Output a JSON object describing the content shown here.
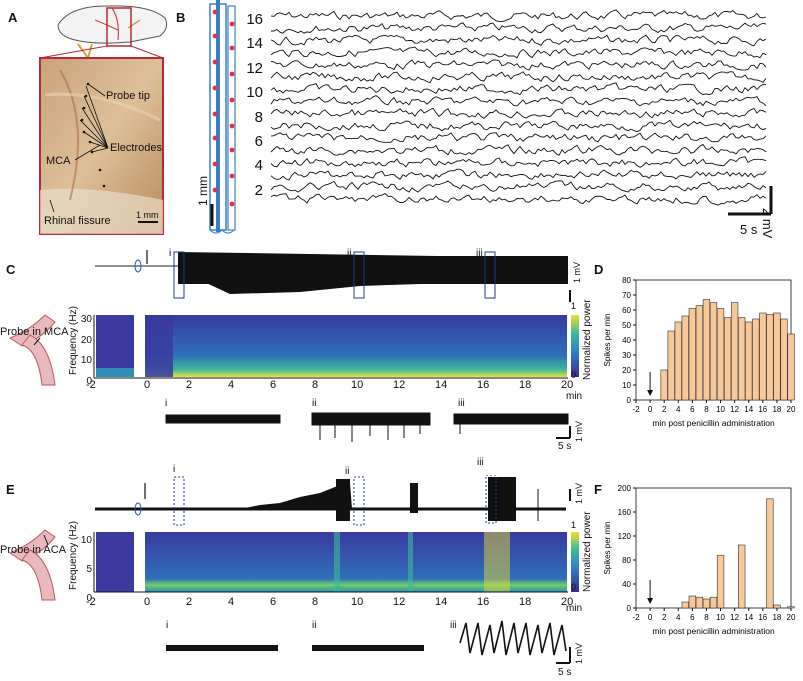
{
  "panels": {
    "A": "A",
    "B": "B",
    "C": "C",
    "D": "D",
    "E": "E",
    "F": "F"
  },
  "panelA": {
    "labels": [
      "Probe tip",
      "Electrodes",
      "MCA",
      "Rhinal fissure"
    ],
    "scalebar": "1 mm"
  },
  "panelB": {
    "channel_labels": [
      "16",
      "14",
      "12",
      "10",
      "8",
      "6",
      "4",
      "2"
    ],
    "scale_v": "2 mV",
    "scale_t": "5 s",
    "probe_scale": "1 mm"
  },
  "panelC": {
    "probe_label": "Probe in MCA",
    "ylabel": "Frequency (Hz)",
    "yticks": [
      "30",
      "20",
      "10",
      "0"
    ],
    "xticks": [
      "-2",
      "0",
      "2",
      "4",
      "6",
      "8",
      "10",
      "12",
      "14",
      "16",
      "18",
      "20"
    ],
    "xunit": "min",
    "cbar_label": "Normalized power",
    "cbar_ticks": [
      "1",
      "0"
    ],
    "roman": [
      "i",
      "ii",
      "iii"
    ],
    "scale_v": "1 mV",
    "scale_t": "5 s"
  },
  "panelE": {
    "probe_label": "Probe in ACA",
    "ylabel": "Frequency (Hz)",
    "yticks": [
      "10",
      "5",
      "0"
    ],
    "xticks": [
      "-2",
      "0",
      "2",
      "4",
      "6",
      "8",
      "10",
      "12",
      "14",
      "16",
      "18",
      "20"
    ],
    "xunit": "min",
    "cbar_label": "Normalized power",
    "cbar_ticks": [
      "1",
      "0"
    ],
    "roman": [
      "i",
      "ii",
      "iii"
    ],
    "scale_v": "1 mV",
    "scale_t": "5 s"
  },
  "chart_data": [
    {
      "panel": "D",
      "type": "bar",
      "x": [
        0,
        1,
        2,
        3,
        4,
        5,
        6,
        7,
        8,
        9,
        10,
        11,
        12,
        13,
        14,
        15,
        16,
        17,
        18,
        19,
        20
      ],
      "values": [
        0,
        0,
        20,
        46,
        52,
        56,
        61,
        63,
        67,
        65,
        61,
        55,
        65,
        55,
        52,
        54,
        58,
        57,
        58,
        54,
        44
      ],
      "ylabel": "Spikes per min",
      "xlabel": "min post penicillin administration",
      "yticks": [
        "0",
        "10",
        "20",
        "30",
        "40",
        "50",
        "60",
        "70",
        "80"
      ],
      "xticks": [
        "-2",
        "0",
        "2",
        "4",
        "6",
        "8",
        "10",
        "12",
        "14",
        "16",
        "18",
        "20"
      ],
      "ylim": [
        0,
        80
      ],
      "xlim": [
        -2,
        20
      ],
      "bar_color": "#f7c89a"
    },
    {
      "panel": "F",
      "type": "bar",
      "x": [
        0,
        1,
        2,
        3,
        4,
        5,
        6,
        7,
        8,
        9,
        10,
        11,
        12,
        13,
        14,
        15,
        16,
        17,
        18,
        19,
        20
      ],
      "values": [
        0,
        0,
        0,
        0,
        0,
        10,
        20,
        18,
        15,
        18,
        88,
        0,
        0,
        105,
        0,
        0,
        0,
        182,
        5,
        0,
        2
      ],
      "ylabel": "Spikes per min",
      "xlabel": "min post penicillin administration",
      "yticks": [
        "0",
        "40",
        "80",
        "120",
        "160",
        "200"
      ],
      "xticks": [
        "-2",
        "0",
        "2",
        "4",
        "6",
        "8",
        "10",
        "12",
        "14",
        "16",
        "18",
        "20"
      ],
      "ylim": [
        0,
        200
      ],
      "xlim": [
        -2,
        20
      ],
      "bar_color": "#f7c89a"
    }
  ]
}
